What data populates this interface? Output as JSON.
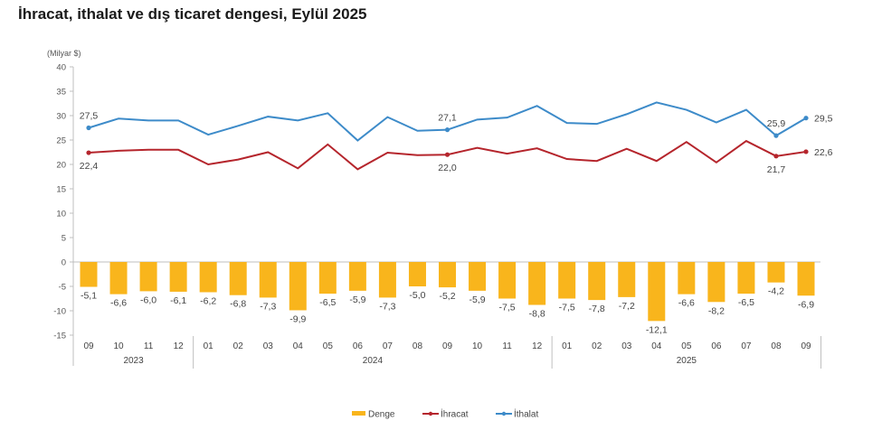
{
  "title": "İhracat, ithalat ve dış ticaret dengesi, Eylül 2025",
  "chart_data": {
    "type": "bar+line",
    "title": "İhracat, ithalat ve dış ticaret dengesi, Eylül 2025",
    "ylabel": "(Milyar $)",
    "xlabel": "",
    "ylim": [
      -15,
      40
    ],
    "yticks": [
      40,
      35,
      30,
      25,
      20,
      15,
      10,
      5,
      0,
      -5,
      -10,
      -15
    ],
    "grid": false,
    "legend_position": "bottom-center",
    "categories": [
      "09",
      "10",
      "11",
      "12",
      "01",
      "02",
      "03",
      "04",
      "05",
      "06",
      "07",
      "08",
      "09",
      "10",
      "11",
      "12",
      "01",
      "02",
      "03",
      "04",
      "05",
      "06",
      "07",
      "08",
      "09"
    ],
    "year_groups": [
      {
        "label": "2023",
        "count": 4
      },
      {
        "label": "2024",
        "count": 12
      },
      {
        "label": "2025",
        "count": 9
      }
    ],
    "series": [
      {
        "name": "Denge",
        "type": "bar",
        "color": "#F9B51C",
        "values": [
          -5.1,
          -6.6,
          -6.0,
          -6.1,
          -6.2,
          -6.8,
          -7.3,
          -9.9,
          -6.5,
          -5.9,
          -7.3,
          -5.0,
          -5.2,
          -5.9,
          -7.5,
          -8.8,
          -7.5,
          -7.8,
          -7.2,
          -12.1,
          -6.6,
          -8.2,
          -6.5,
          -4.2,
          -6.9
        ],
        "labels": [
          "-5,1",
          "-6,6",
          "-6,0",
          "-6,1",
          "-6,2",
          "-6,8",
          "-7,3",
          "-9,9",
          "-6,5",
          "-5,9",
          "-7,3",
          "-5,0",
          "-5,2",
          "-5,9",
          "-7,5",
          "-8,8",
          "-7,5",
          "-7,8",
          "-7,2",
          "-12,1",
          "-6,6",
          "-8,2",
          "-6,5",
          "-4,2",
          "-6,9"
        ]
      },
      {
        "name": "İhracat",
        "type": "line",
        "color": "#B5252C",
        "values": [
          22.4,
          22.8,
          23.0,
          23.0,
          20.0,
          21.0,
          22.5,
          19.2,
          24.1,
          19.0,
          22.4,
          21.9,
          22.0,
          23.4,
          22.2,
          23.3,
          21.1,
          20.7,
          23.2,
          20.7,
          24.6,
          20.4,
          24.8,
          21.7,
          22.6
        ],
        "annotations": [
          {
            "index": 0,
            "text": "22,4",
            "pos": "below"
          },
          {
            "index": 12,
            "text": "22,0",
            "pos": "below"
          },
          {
            "index": 23,
            "text": "21,7",
            "pos": "below"
          },
          {
            "index": 24,
            "text": "22,6",
            "pos": "right"
          }
        ]
      },
      {
        "name": "İthalat",
        "type": "line",
        "color": "#3D8BC9",
        "values": [
          27.5,
          29.4,
          29.0,
          29.0,
          26.1,
          27.9,
          29.8,
          29.0,
          30.5,
          24.9,
          29.7,
          26.9,
          27.1,
          29.2,
          29.6,
          32.0,
          28.5,
          28.3,
          30.3,
          32.7,
          31.2,
          28.6,
          31.2,
          25.9,
          29.5
        ],
        "annotations": [
          {
            "index": 0,
            "text": "27,5",
            "pos": "above"
          },
          {
            "index": 12,
            "text": "27,1",
            "pos": "above"
          },
          {
            "index": 23,
            "text": "25,9",
            "pos": "above"
          },
          {
            "index": 24,
            "text": "29,5",
            "pos": "right"
          }
        ]
      }
    ]
  }
}
